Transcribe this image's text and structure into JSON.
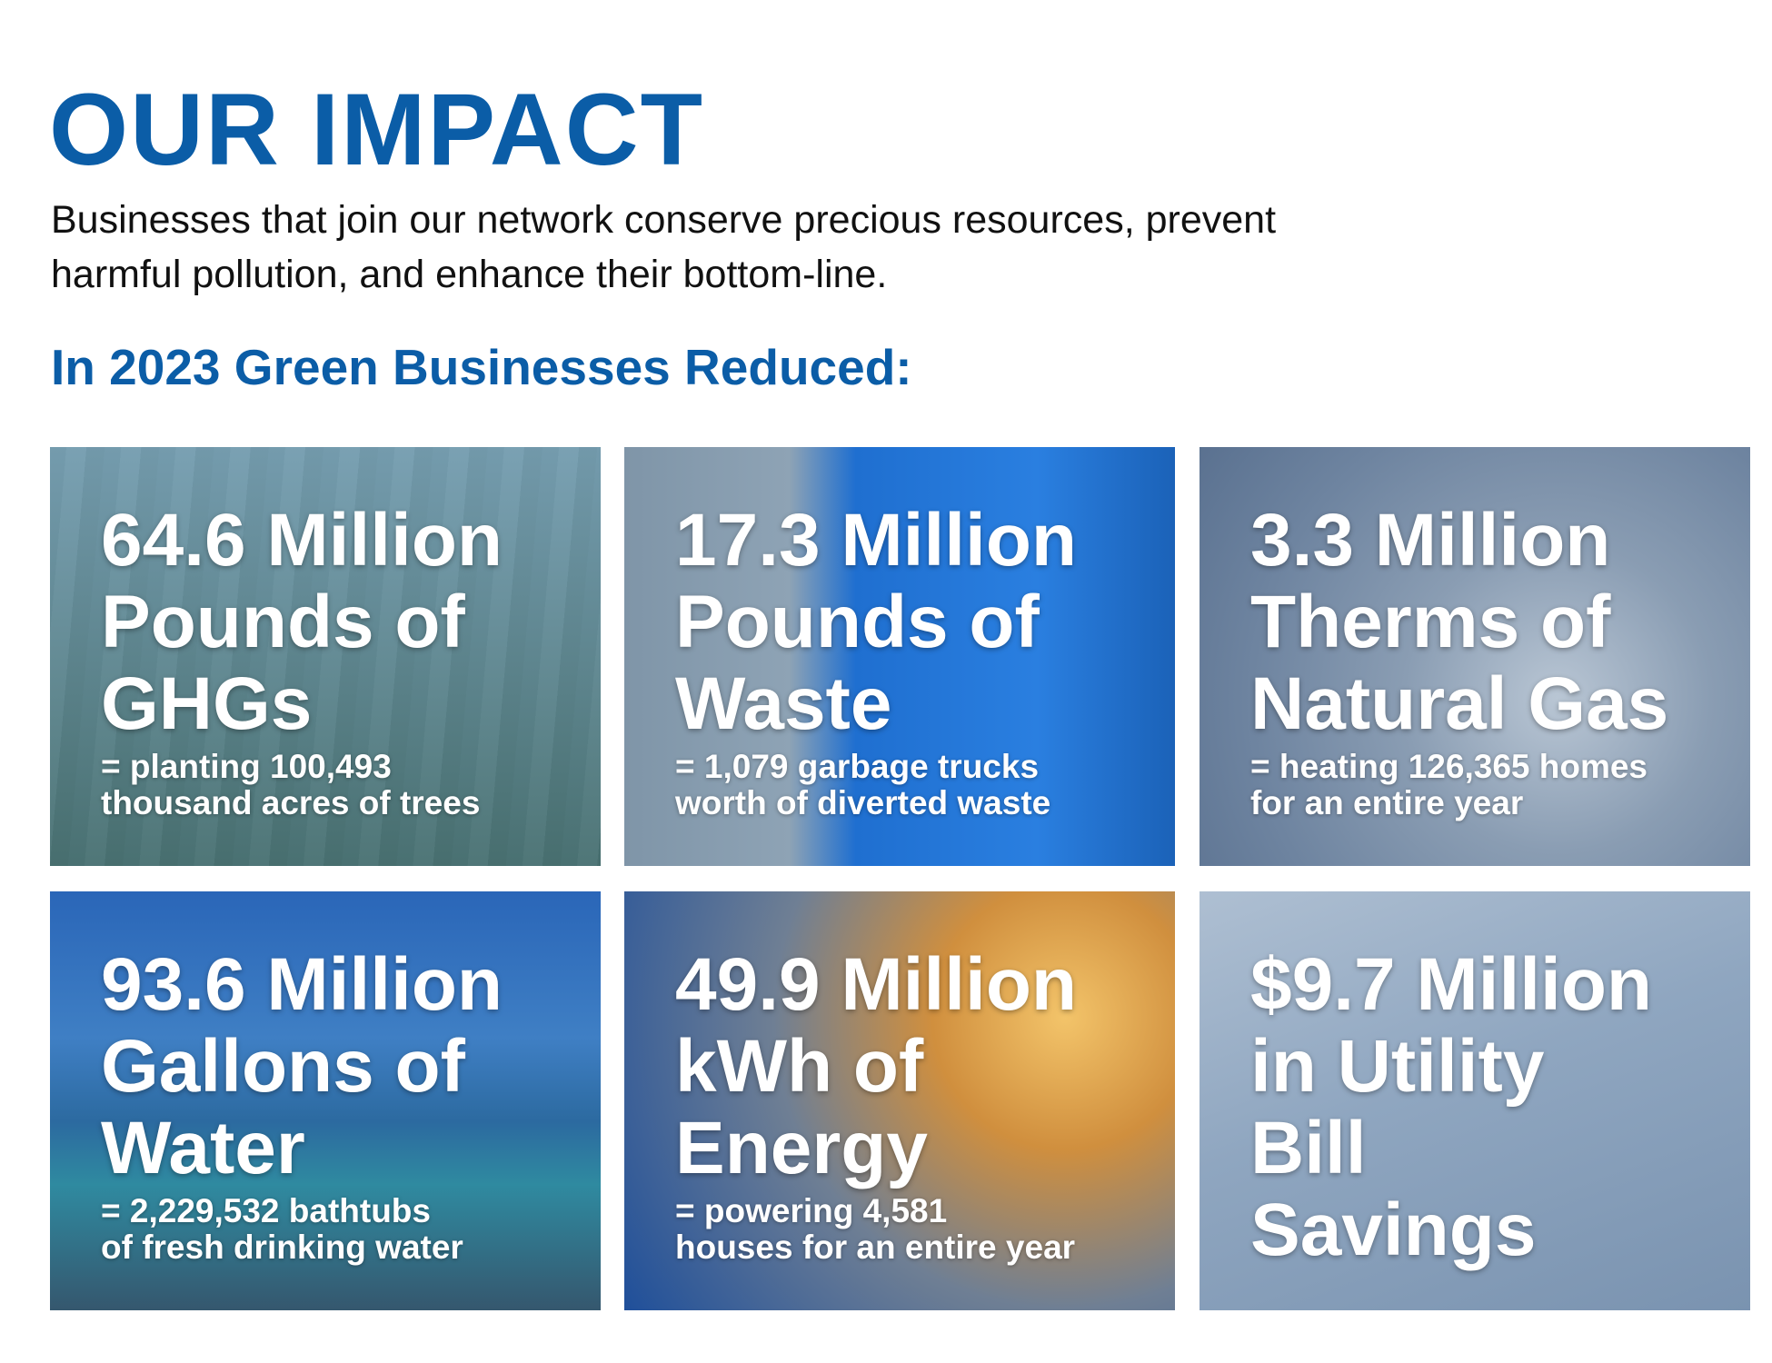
{
  "header": {
    "title": "OUR IMPACT",
    "description": [
      "Businesses that join our network conserve precious resources, prevent",
      "harmful pollution, and enhance their bottom-line."
    ],
    "subtitle": "In 2023 Green Businesses Reduced:"
  },
  "tiles": [
    {
      "headline": [
        "64.6 Million",
        "Pounds of",
        "GHGs"
      ],
      "detail": [
        "= planting 100,493",
        "thousand acres of trees"
      ]
    },
    {
      "headline": [
        "17.3 Million",
        "Pounds of",
        "Waste"
      ],
      "detail": [
        "= 1,079 garbage trucks",
        "worth of diverted waste"
      ]
    },
    {
      "headline": [
        "3.3 Million",
        "Therms of",
        "Natural Gas"
      ],
      "detail": [
        "= heating 126,365 homes",
        "for an entire year"
      ]
    },
    {
      "headline": [
        "93.6 Million",
        "Gallons of",
        "Water"
      ],
      "detail": [
        "= 2,229,532 bathtubs",
        "of fresh drinking water"
      ]
    },
    {
      "headline": [
        "49.9 Million",
        "kWh of",
        "Energy"
      ],
      "detail": [
        "= powering 4,581",
        "houses for an entire year"
      ]
    },
    {
      "headline": [
        "$9.7 Million",
        "in Utility",
        "Bill",
        "Savings"
      ],
      "detail": []
    }
  ]
}
